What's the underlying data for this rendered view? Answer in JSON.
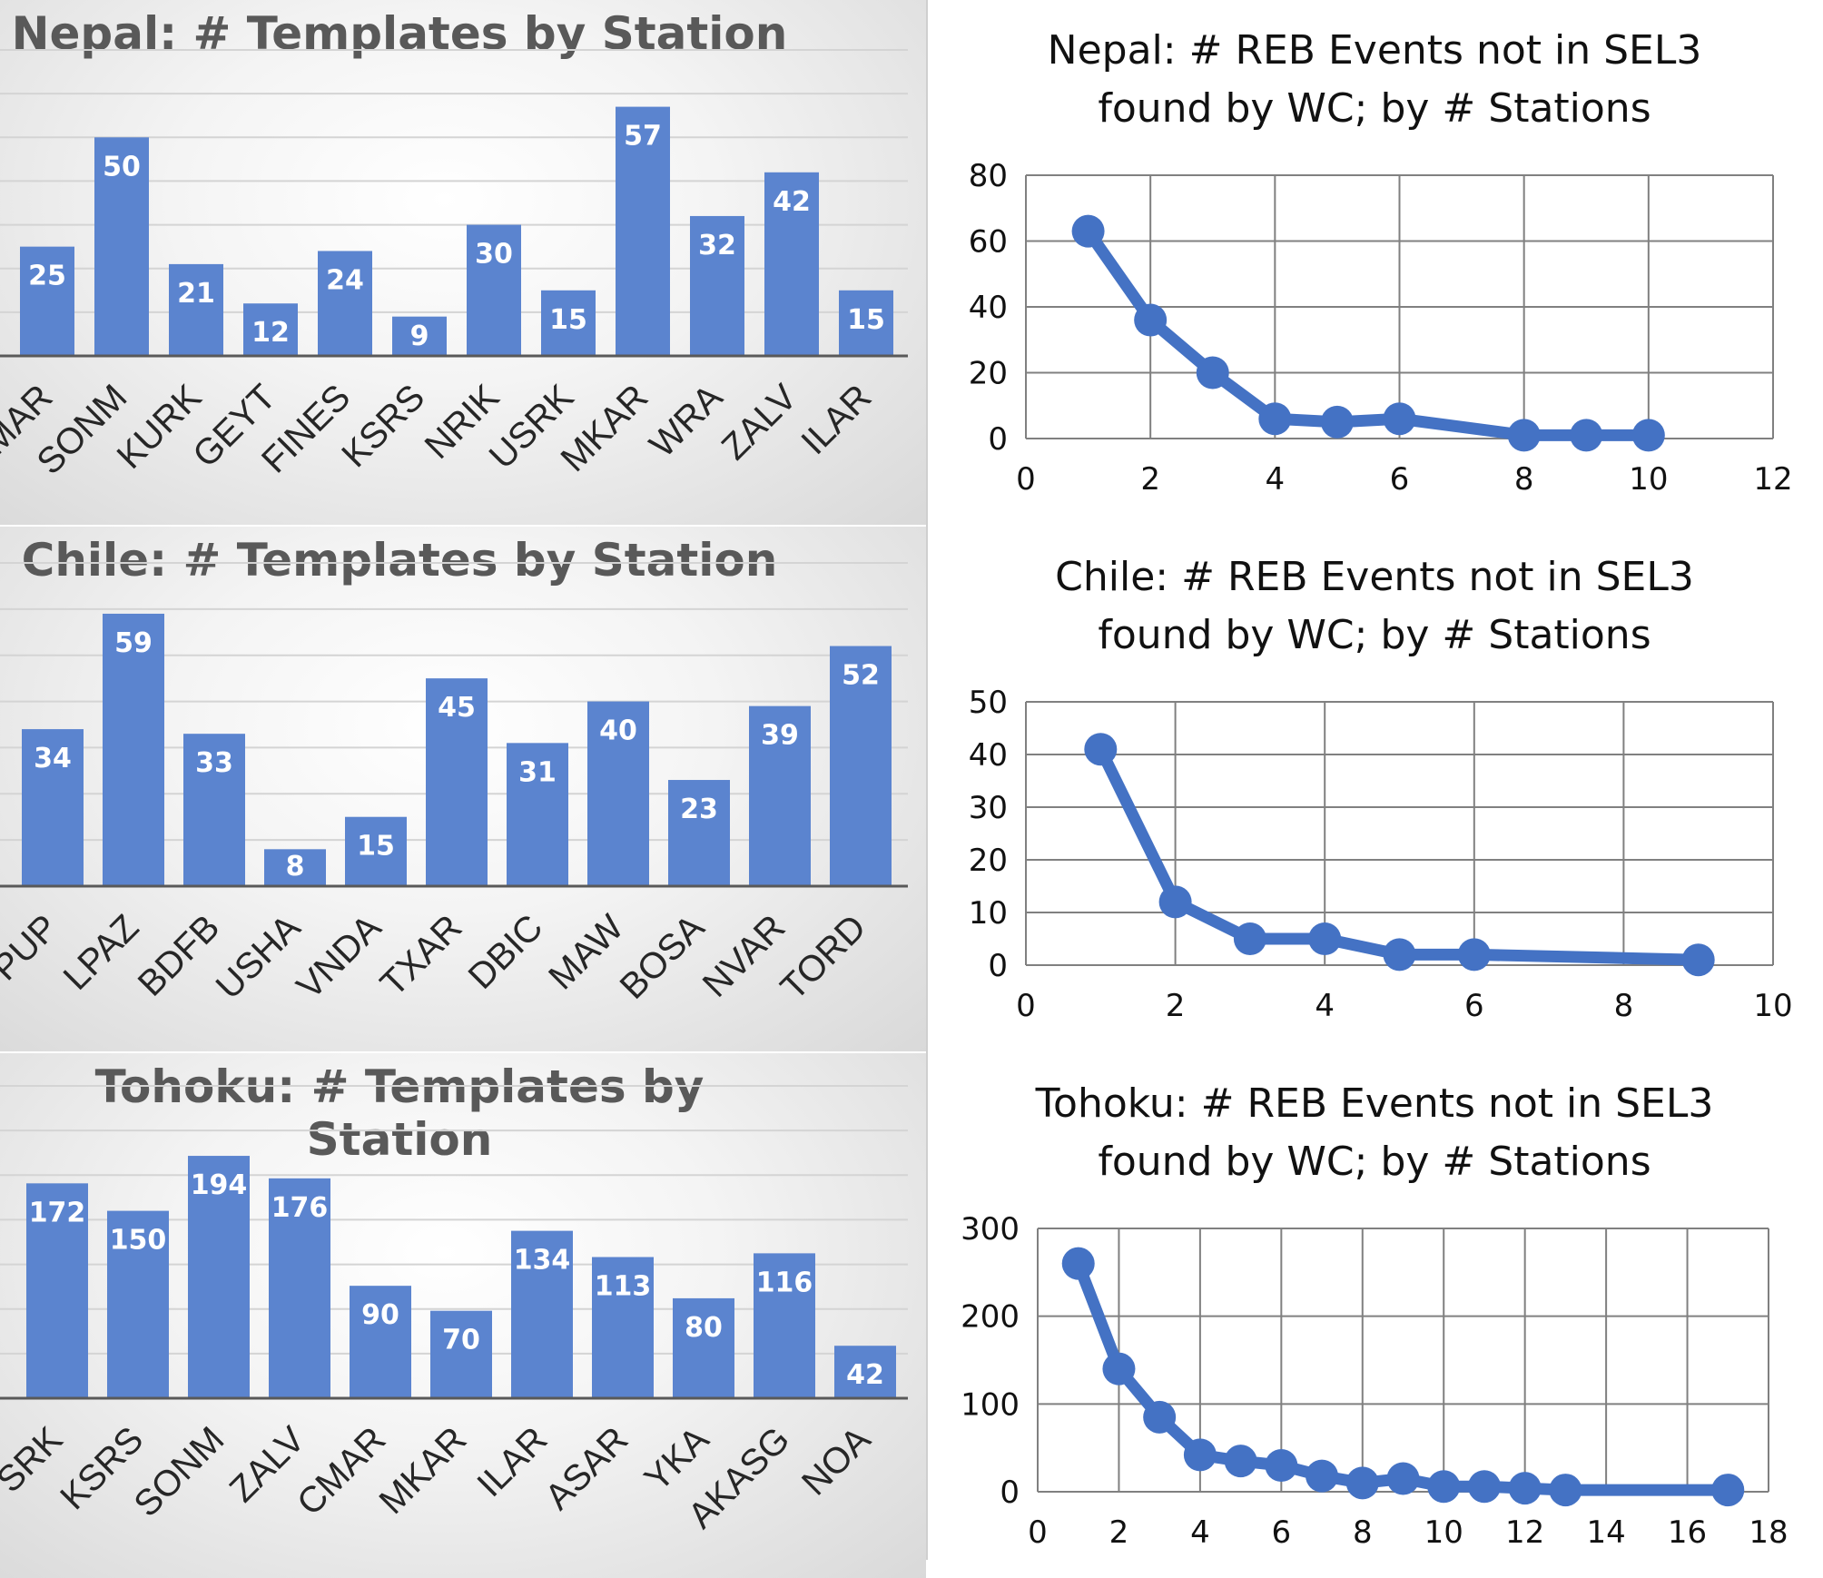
{
  "chart_data": [
    {
      "type": "bar",
      "title": "Nepal:  # Templates by Station",
      "categories": [
        "MAR",
        "SONM",
        "KURK",
        "GEYT",
        "FINES",
        "KSRS",
        "NRIK",
        "USRK",
        "MKAR",
        "WRA",
        "ZALV",
        "ILAR"
      ],
      "values": [
        25,
        50,
        21,
        12,
        24,
        9,
        30,
        15,
        57,
        32,
        42,
        15
      ],
      "ylim": [
        0,
        70
      ],
      "grid": true,
      "bar_color": "#5b84cf"
    },
    {
      "type": "line",
      "title_lines": [
        "Nepal:  # REB Events not in SEL3",
        "found by WC; by # Stations"
      ],
      "series": [
        {
          "x": [
            1,
            2,
            3,
            4,
            5,
            6,
            8,
            9,
            10
          ],
          "y": [
            63,
            36,
            20,
            6,
            5,
            6,
            1,
            1,
            1
          ]
        }
      ],
      "xlim": [
        0,
        12
      ],
      "xticks": [
        0,
        2,
        4,
        6,
        8,
        10,
        12
      ],
      "ylim": [
        0,
        80
      ],
      "yticks": [
        0,
        20,
        40,
        60,
        80
      ],
      "grid": true,
      "color": "#4472c4"
    },
    {
      "type": "bar",
      "title": "Chile:  # Templates by Station",
      "categories": [
        "PUP",
        "LPAZ",
        "BDFB",
        "USHA",
        "VNDA",
        "TXAR",
        "DBIC",
        "MAW",
        "BOSA",
        "NVAR",
        "TORD"
      ],
      "values": [
        34,
        59,
        33,
        8,
        15,
        45,
        31,
        40,
        23,
        39,
        52
      ],
      "ylim": [
        0,
        70
      ],
      "grid": true,
      "bar_color": "#5b84cf"
    },
    {
      "type": "line",
      "title_lines": [
        "Chile:  # REB Events not in SEL3",
        "found by WC; by # Stations"
      ],
      "series": [
        {
          "x": [
            1,
            2,
            3,
            4,
            5,
            6,
            9
          ],
          "y": [
            41,
            12,
            5,
            5,
            2,
            2,
            1
          ]
        }
      ],
      "xlim": [
        0,
        10
      ],
      "xticks": [
        0,
        2,
        4,
        6,
        8,
        10
      ],
      "ylim": [
        0,
        50
      ],
      "yticks": [
        0,
        10,
        20,
        30,
        40,
        50
      ],
      "grid": true,
      "color": "#4472c4"
    },
    {
      "type": "bar",
      "title": "Tohoku:  # Templates by Station",
      "categories": [
        "SRK",
        "KSRS",
        "SONM",
        "ZALV",
        "CMAR",
        "MKAR",
        "ILAR",
        "ASAR",
        "YKA",
        "AKASG",
        "NOA"
      ],
      "values": [
        172,
        150,
        194,
        176,
        90,
        70,
        134,
        113,
        80,
        116,
        42
      ],
      "ylim": [
        0,
        250
      ],
      "grid": true,
      "bar_color": "#5b84cf"
    },
    {
      "type": "line",
      "title_lines": [
        "Tohoku:  # REB Events not in SEL3",
        "found by WC; by # Stations"
      ],
      "series": [
        {
          "x": [
            1,
            2,
            3,
            4,
            5,
            6,
            7,
            8,
            9,
            10,
            11,
            12,
            13,
            17
          ],
          "y": [
            260,
            140,
            85,
            42,
            35,
            30,
            18,
            10,
            15,
            6,
            6,
            4,
            2,
            2
          ]
        }
      ],
      "xlim": [
        0,
        18
      ],
      "xticks": [
        0,
        2,
        4,
        6,
        8,
        10,
        12,
        14,
        16,
        18
      ],
      "ylim": [
        0,
        300
      ],
      "yticks": [
        0,
        100,
        200,
        300
      ],
      "grid": true,
      "color": "#4472c4"
    }
  ]
}
